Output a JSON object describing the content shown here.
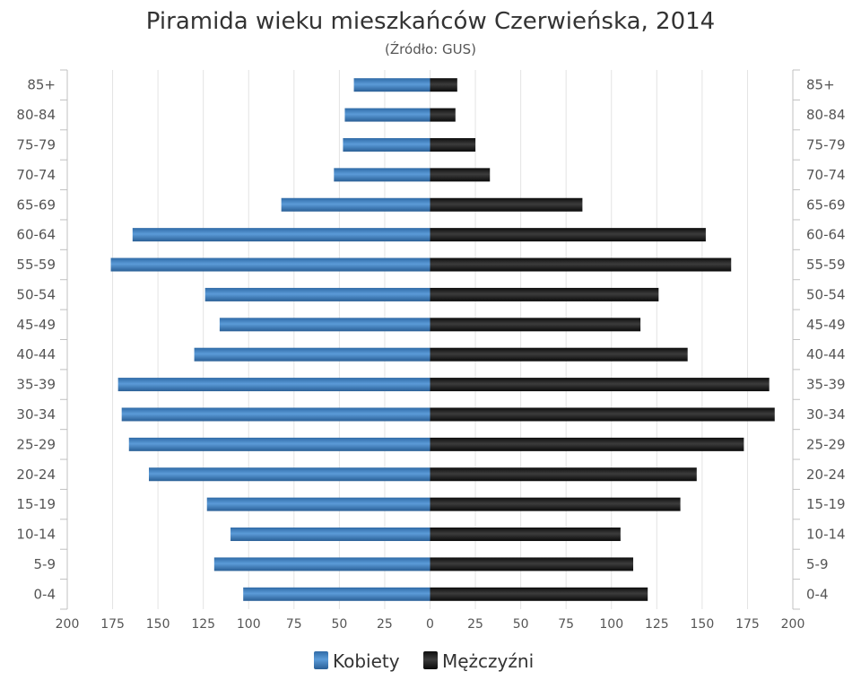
{
  "chart_data": {
    "type": "bar",
    "orientation": "horizontal",
    "title": "Piramida wieku mieszkańców Czerwieńska, 2014",
    "subtitle": "(Źródło: GUS)",
    "categories": [
      "85+",
      "80-84",
      "75-79",
      "70-74",
      "65-69",
      "60-64",
      "55-59",
      "50-54",
      "45-49",
      "40-44",
      "35-39",
      "30-34",
      "25-29",
      "20-24",
      "15-19",
      "10-14",
      "5-9",
      "0-4"
    ],
    "series": [
      {
        "name": "Kobiety",
        "color": "#3a78b5",
        "values": [
          42,
          47,
          48,
          53,
          82,
          164,
          176,
          124,
          116,
          130,
          172,
          170,
          166,
          155,
          123,
          110,
          119,
          103
        ]
      },
      {
        "name": "Mężczyźni",
        "color": "#1e1e1e",
        "values": [
          15,
          14,
          25,
          33,
          84,
          152,
          166,
          126,
          116,
          142,
          187,
          190,
          173,
          147,
          138,
          105,
          112,
          120
        ]
      }
    ],
    "xlim": [
      -200,
      200
    ],
    "xticks": [
      "200",
      "175",
      "150",
      "125",
      "100",
      "75",
      "50",
      "25",
      "0",
      "25",
      "50",
      "75",
      "100",
      "125",
      "150",
      "175",
      "200"
    ],
    "grid": true,
    "legend": "bottom-center"
  }
}
